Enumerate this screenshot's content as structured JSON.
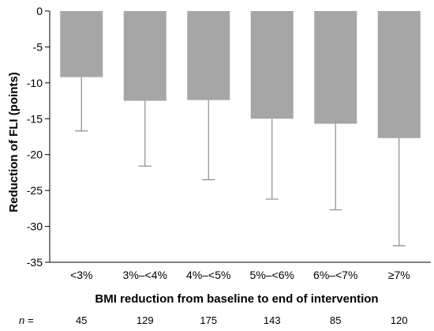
{
  "chart_data": {
    "type": "bar",
    "title": "",
    "xlabel": "BMI reduction from baseline to end of intervention",
    "ylabel": "Reduction of FLI (points)",
    "ylim": [
      -35,
      0
    ],
    "yticks": [
      0,
      -5,
      -10,
      -15,
      -20,
      -25,
      -30,
      -35
    ],
    "grid": false,
    "bar_color": "#a6a6a6",
    "error_color": "#8c8c8c",
    "categories": [
      "<3%",
      "3%–<4%",
      "4%–<5%",
      "5%–<6%",
      "6%–<7%",
      "≥7%"
    ],
    "values": [
      -9.2,
      -12.5,
      -12.4,
      -15.0,
      -15.7,
      -17.7
    ],
    "error_low": [
      -16.7,
      -21.6,
      -23.5,
      -26.2,
      -27.7,
      -32.7
    ],
    "n_prefix": "n =",
    "n_values": [
      "45",
      "129",
      "175",
      "143",
      "85",
      "120"
    ]
  }
}
